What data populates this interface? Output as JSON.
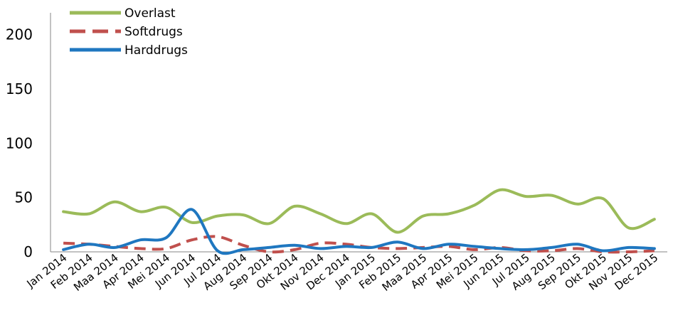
{
  "chart_data": {
    "type": "line",
    "categories": [
      "Jan 2014",
      "Feb 2014",
      "Maa 2014",
      "Apr 2014",
      "Mei 2014",
      "Jun 2014",
      "Jul 2014",
      "Aug 2014",
      "Sep 2014",
      "Okt 2014",
      "Nov 2014",
      "Dec 2014",
      "Jan 2015",
      "Feb 2015",
      "Maa 2015",
      "Apr 2015",
      "Mei 2015",
      "Jun 2015",
      "Jul 2015",
      "Aug 2015",
      "Sep 2015",
      "Okt 2015",
      "Nov 2015",
      "Dec 2015"
    ],
    "series": [
      {
        "name": "Overlast",
        "color": "#9bbb59",
        "dash": "solid",
        "values": [
          37,
          35,
          46,
          37,
          41,
          27,
          33,
          34,
          26,
          42,
          35,
          26,
          35,
          18,
          33,
          35,
          43,
          57,
          51,
          52,
          44,
          49,
          22,
          30
        ]
      },
      {
        "name": "Softdrugs",
        "color": "#c0504d",
        "dash": "dashed",
        "values": [
          8,
          7,
          5,
          3,
          3,
          11,
          14,
          6,
          0,
          2,
          8,
          7,
          4,
          3,
          4,
          5,
          2,
          4,
          1,
          1,
          3,
          0,
          0,
          1
        ]
      },
      {
        "name": "Harddrugs",
        "color": "#1f77c0",
        "dash": "solid",
        "values": [
          2,
          7,
          4,
          11,
          13,
          39,
          1,
          2,
          4,
          6,
          3,
          5,
          4,
          9,
          3,
          7,
          5,
          3,
          2,
          4,
          7,
          1,
          4,
          3
        ]
      }
    ],
    "yticks": [
      0,
      50,
      100,
      150,
      200
    ],
    "ylim": [
      0,
      220
    ],
    "grid": false,
    "legend_position": "top-left"
  }
}
